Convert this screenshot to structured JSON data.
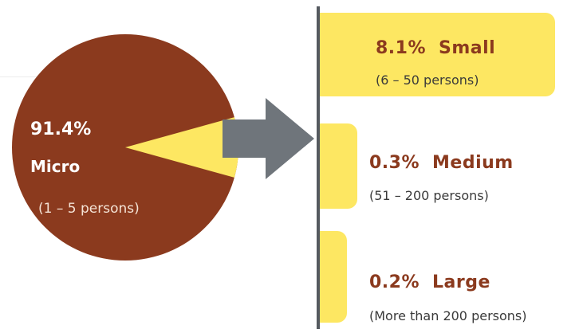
{
  "chart_data": {
    "type": "pie",
    "slices": [
      {
        "label": "Micro",
        "percent": 91.4,
        "percent_label": "91.4%",
        "range": "(1 – 5 persons)",
        "color": "#8b3a1e"
      },
      {
        "label": "Small",
        "percent": 8.1,
        "percent_label": "8.1%",
        "range": "(6 – 50 persons)",
        "color": "#fde762"
      },
      {
        "label": "Medium",
        "percent": 0.3,
        "percent_label": "0.3%",
        "range": "(51 – 200 persons)",
        "color": "#fde762"
      },
      {
        "label": "Large",
        "percent": 0.2,
        "percent_label": "0.2%",
        "range": "(More than 200 persons)",
        "color": "#fde762"
      }
    ],
    "breakdown": {
      "type": "bar",
      "orientation": "horizontal",
      "categories": [
        "Small",
        "Medium",
        "Large"
      ],
      "values": [
        8.1,
        0.3,
        0.2
      ]
    },
    "colors": {
      "micro": "#8b3a1e",
      "other": "#fde762",
      "arrow": "#6f757b",
      "divider": "#555a60",
      "label": "#8b3a1e"
    }
  }
}
